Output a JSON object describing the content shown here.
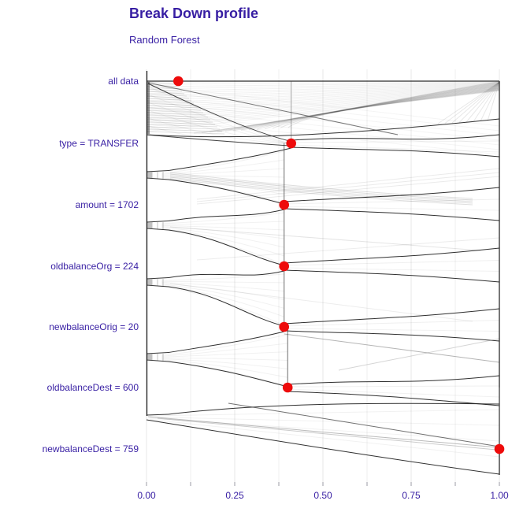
{
  "title": "Break Down profile",
  "subtitle": "Random Forest",
  "chart_data": {
    "type": "line",
    "variant": "break_down_profile_with_distributions",
    "title": "Break Down profile",
    "subtitle": "Random Forest",
    "model": "Random Forest",
    "x_axis": {
      "ticks": [
        "0.00",
        "0.25",
        "0.50",
        "0.75",
        "1.00"
      ],
      "tick_values": [
        0,
        0.25,
        0.5,
        0.75,
        1.0
      ],
      "range": [
        0,
        1
      ],
      "minor_grid_step": 0.125
    },
    "rows": [
      {
        "label": "all data",
        "value": 0.09
      },
      {
        "label": "type = TRANSFER",
        "value": 0.41
      },
      {
        "label": "amount = 1702",
        "value": 0.39
      },
      {
        "label": "oldbalanceOrg = 224",
        "value": 0.39
      },
      {
        "label": "newbalanceOrig = 20",
        "value": 0.39
      },
      {
        "label": "oldbalanceDest = 600",
        "value": 0.4
      },
      {
        "label": "newbalanceDest = 759",
        "value": 1.0
      }
    ],
    "legend": "none",
    "grid": "vertical",
    "colors": {
      "dot": "#ee0b0b",
      "text": "#371ea3",
      "line": "#000000",
      "grid_major": "#e7e7e7",
      "grid_minor": "#efefef"
    }
  }
}
